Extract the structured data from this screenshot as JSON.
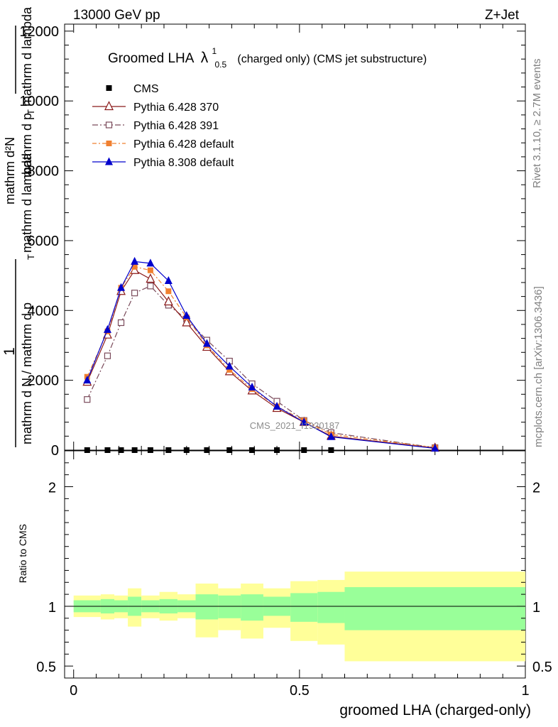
{
  "header": {
    "left": "13000 GeV pp",
    "right": "Z+Jet"
  },
  "side_labels": {
    "rivet": "Rivet 3.1.10, ≥ 2.7M events",
    "mcplots": "mcplots.cern.ch [arXiv:1306.3436]"
  },
  "watermark": "CMS_2021_I1920187",
  "chart_data": [
    {
      "type": "line",
      "title_main": "Groomed LHA",
      "title_lambda": "λ",
      "title_sup": "1",
      "title_sub": "0.5",
      "title_rest": "(charged only) (CMS jet substructure)",
      "ylabel_numerator_1": "1",
      "ylabel_denominator_1": "mathrm d N / mathrm d p",
      "ylabel_sub_1": "T",
      "ylabel_frag_1": "mathrm d lambda",
      "ylabel_numerator_2": "mathrm d²N",
      "ylabel_denominator_2": "mathrm d p",
      "ylabel_sub_2": "T",
      "ylabel_frag_2": "mathrm d lambda",
      "ylim": [
        0,
        12200
      ],
      "yticks": [
        0,
        2000,
        4000,
        6000,
        8000,
        10000,
        12000
      ],
      "ytick_labels": [
        "0",
        "2000",
        "4000",
        "6000",
        "8000",
        "10000",
        "12000"
      ],
      "xlim": [
        -0.02,
        1.0
      ],
      "legend_position": "top-left",
      "series": [
        {
          "name": "CMS",
          "color": "#000000",
          "marker": "square-filled",
          "x": [
            0.03,
            0.075,
            0.105,
            0.135,
            0.17,
            0.21,
            0.25,
            0.295,
            0.345,
            0.395,
            0.45,
            0.51,
            0.57
          ],
          "y": [
            0,
            0,
            0,
            0,
            0,
            0,
            0,
            0,
            0,
            0,
            0,
            0,
            0
          ]
        },
        {
          "name": "Pythia 6.428 370",
          "color": "#8b1a1a",
          "marker": "triangle-open",
          "dash": "",
          "x": [
            0.03,
            0.075,
            0.105,
            0.135,
            0.17,
            0.21,
            0.25,
            0.295,
            0.345,
            0.395,
            0.45,
            0.51,
            0.57,
            0.8
          ],
          "y": [
            1950,
            3300,
            4550,
            5150,
            4900,
            4250,
            3650,
            2950,
            2250,
            1700,
            1200,
            800,
            400,
            60
          ]
        },
        {
          "name": "Pythia 6.428 391",
          "color": "#7a4a5a",
          "marker": "square-open",
          "dash": "8,3,2,3",
          "x": [
            0.03,
            0.075,
            0.105,
            0.135,
            0.17,
            0.21,
            0.25,
            0.295,
            0.345,
            0.395,
            0.45,
            0.51,
            0.57,
            0.8
          ],
          "y": [
            1450,
            2700,
            3650,
            4500,
            4700,
            4150,
            3750,
            3150,
            2550,
            1900,
            1400,
            850,
            500,
            70
          ]
        },
        {
          "name": "Pythia 6.428 default",
          "color": "#f08030",
          "marker": "square-filled",
          "dash": "6,3,2,3",
          "x": [
            0.03,
            0.075,
            0.105,
            0.135,
            0.17,
            0.21,
            0.25,
            0.295,
            0.345,
            0.395,
            0.45,
            0.51,
            0.57,
            0.8
          ],
          "y": [
            2100,
            3400,
            4650,
            5250,
            5150,
            4550,
            3800,
            3000,
            2300,
            1750,
            1250,
            850,
            450,
            70
          ]
        },
        {
          "name": "Pythia 8.308 default",
          "color": "#0000cc",
          "marker": "triangle-filled",
          "dash": "",
          "x": [
            0.03,
            0.075,
            0.105,
            0.135,
            0.17,
            0.21,
            0.25,
            0.295,
            0.345,
            0.395,
            0.45,
            0.51,
            0.57,
            0.8
          ],
          "y": [
            2000,
            3450,
            4650,
            5400,
            5350,
            4850,
            3850,
            3050,
            2400,
            1800,
            1250,
            800,
            380,
            50
          ]
        }
      ]
    },
    {
      "type": "area",
      "ylabel": "Ratio to CMS",
      "xlabel": "groomed LHA (charged-only)",
      "ylim": [
        0.4,
        2.3
      ],
      "yticks": [
        0.5,
        1,
        2
      ],
      "ytick_labels": [
        "0.5",
        "1",
        "2"
      ],
      "xlim": [
        -0.02,
        1.0
      ],
      "xticks": [
        0,
        0.5,
        1
      ],
      "xtick_labels": [
        "0",
        "0.5",
        "1"
      ],
      "reference_line": 1,
      "bins": [
        {
          "lo": 0.0,
          "hi": 0.06,
          "stat_lo": 0.95,
          "stat_hi": 1.05,
          "tot_lo": 0.91,
          "tot_hi": 1.09
        },
        {
          "lo": 0.06,
          "hi": 0.09,
          "stat_lo": 0.94,
          "stat_hi": 1.06,
          "tot_lo": 0.89,
          "tot_hi": 1.1
        },
        {
          "lo": 0.09,
          "hi": 0.12,
          "stat_lo": 0.95,
          "stat_hi": 1.05,
          "tot_lo": 0.9,
          "tot_hi": 1.09
        },
        {
          "lo": 0.12,
          "hi": 0.15,
          "stat_lo": 0.92,
          "stat_hi": 1.08,
          "tot_lo": 0.83,
          "tot_hi": 1.15
        },
        {
          "lo": 0.15,
          "hi": 0.19,
          "stat_lo": 0.95,
          "stat_hi": 1.05,
          "tot_lo": 0.9,
          "tot_hi": 1.09
        },
        {
          "lo": 0.19,
          "hi": 0.23,
          "stat_lo": 0.94,
          "stat_hi": 1.06,
          "tot_lo": 0.88,
          "tot_hi": 1.12
        },
        {
          "lo": 0.23,
          "hi": 0.27,
          "stat_lo": 0.95,
          "stat_hi": 1.05,
          "tot_lo": 0.9,
          "tot_hi": 1.1
        },
        {
          "lo": 0.27,
          "hi": 0.32,
          "stat_lo": 0.89,
          "stat_hi": 1.1,
          "tot_lo": 0.74,
          "tot_hi": 1.19
        },
        {
          "lo": 0.32,
          "hi": 0.37,
          "stat_lo": 0.9,
          "stat_hi": 1.09,
          "tot_lo": 0.8,
          "tot_hi": 1.15
        },
        {
          "lo": 0.37,
          "hi": 0.42,
          "stat_lo": 0.88,
          "stat_hi": 1.1,
          "tot_lo": 0.73,
          "tot_hi": 1.19
        },
        {
          "lo": 0.42,
          "hi": 0.48,
          "stat_lo": 0.92,
          "stat_hi": 1.08,
          "tot_lo": 0.82,
          "tot_hi": 1.15
        },
        {
          "lo": 0.48,
          "hi": 0.54,
          "stat_lo": 0.87,
          "stat_hi": 1.11,
          "tot_lo": 0.71,
          "tot_hi": 1.21
        },
        {
          "lo": 0.54,
          "hi": 0.6,
          "stat_lo": 0.86,
          "stat_hi": 1.12,
          "tot_lo": 0.68,
          "tot_hi": 1.22
        },
        {
          "lo": 0.6,
          "hi": 1.0,
          "stat_lo": 0.8,
          "stat_hi": 1.16,
          "tot_lo": 0.54,
          "tot_hi": 1.29
        }
      ],
      "stat_color": "#99ff99",
      "total_color": "#ffff99"
    }
  ]
}
